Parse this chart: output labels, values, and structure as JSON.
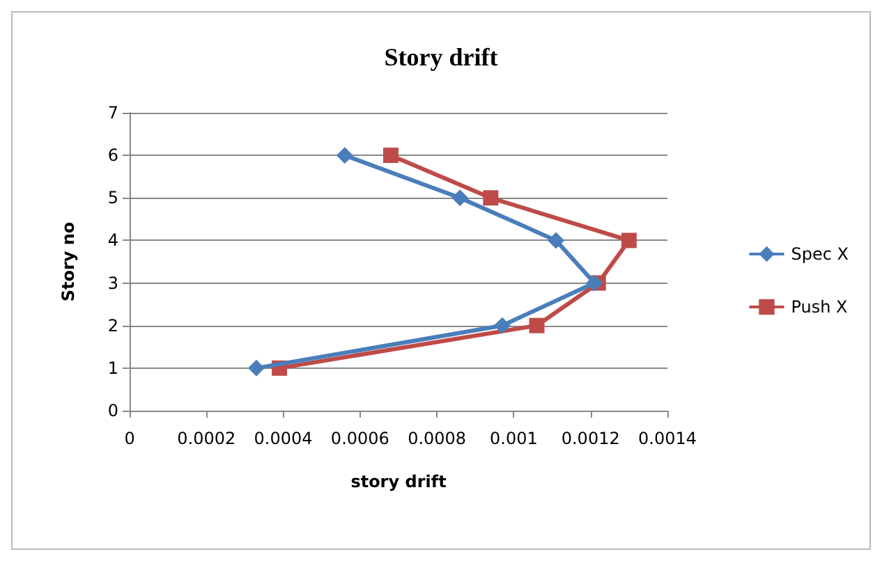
{
  "chart_data": {
    "type": "line",
    "title": "Story drift",
    "xlabel": "story drift",
    "ylabel": "Story no",
    "series": [
      {
        "name": "Spec X",
        "color": "#4a7ebb",
        "marker": "diamond",
        "x": [
          0.00033,
          0.00097,
          0.00121,
          0.00111,
          0.00086,
          0.00056
        ],
        "values": [
          1,
          2,
          3,
          4,
          5,
          6
        ]
      },
      {
        "name": "Push X",
        "color": "#be4b48",
        "marker": "square",
        "x": [
          0.00039,
          0.00106,
          0.00122,
          0.0013,
          0.00094,
          0.00068
        ],
        "values": [
          1,
          2,
          3,
          4,
          5,
          6
        ]
      }
    ],
    "xlim": [
      0,
      0.0014
    ],
    "xticks": [
      0,
      0.0002,
      0.0004,
      0.0006,
      0.0008,
      0.001,
      0.0012,
      0.0014
    ],
    "ylim": [
      0,
      7
    ],
    "yticks": [
      0,
      1,
      2,
      3,
      4,
      5,
      6,
      7
    ],
    "grid": "y",
    "legend": "right"
  }
}
